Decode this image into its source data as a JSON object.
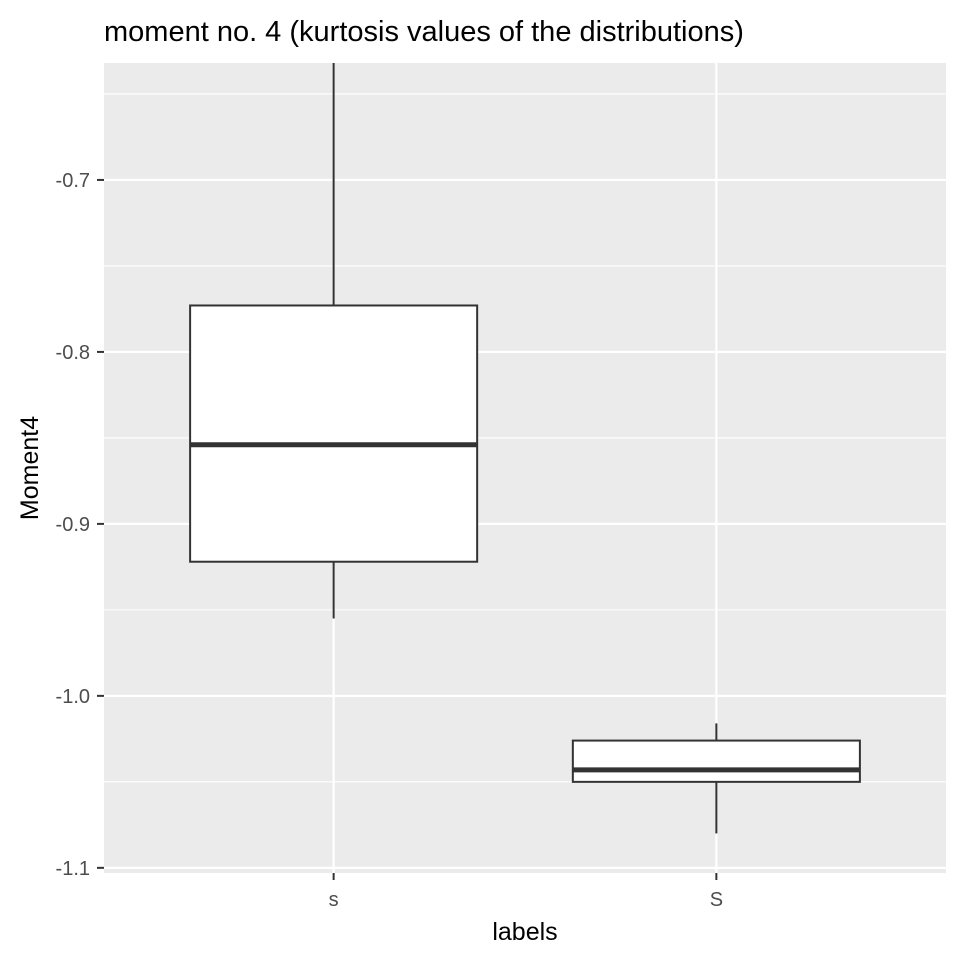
{
  "chart_data": {
    "type": "boxplot",
    "title": "moment no. 4 (kurtosis values of the distributions)",
    "xlabel": "labels",
    "ylabel": "Moment4",
    "ylim": [
      -1.103,
      -0.632
    ],
    "y_ticks": [
      "-0.7",
      "-0.8",
      "-0.9",
      "-1.0",
      "-1.1"
    ],
    "y_tick_values": [
      -0.7,
      -0.8,
      -0.9,
      -1.0,
      -1.1
    ],
    "y_minor_values": [
      -0.65,
      -0.75,
      -0.85,
      -0.95,
      -1.05
    ],
    "categories": [
      "s",
      "S"
    ],
    "boxes": [
      {
        "category": "s",
        "whisker_low": -0.955,
        "q1": -0.922,
        "median": -0.854,
        "q3": -0.773,
        "whisker_high": -0.632
      },
      {
        "category": "S",
        "whisker_low": -1.08,
        "q1": -1.05,
        "median": -1.043,
        "q3": -1.026,
        "whisker_high": -1.016
      }
    ],
    "grid": true,
    "legend": "none",
    "colors": {
      "panel_background": "#ebebeb",
      "grid_line": "#ffffff",
      "box_fill": "#ffffff",
      "box_stroke": "#333333",
      "tick": "#333333"
    }
  }
}
